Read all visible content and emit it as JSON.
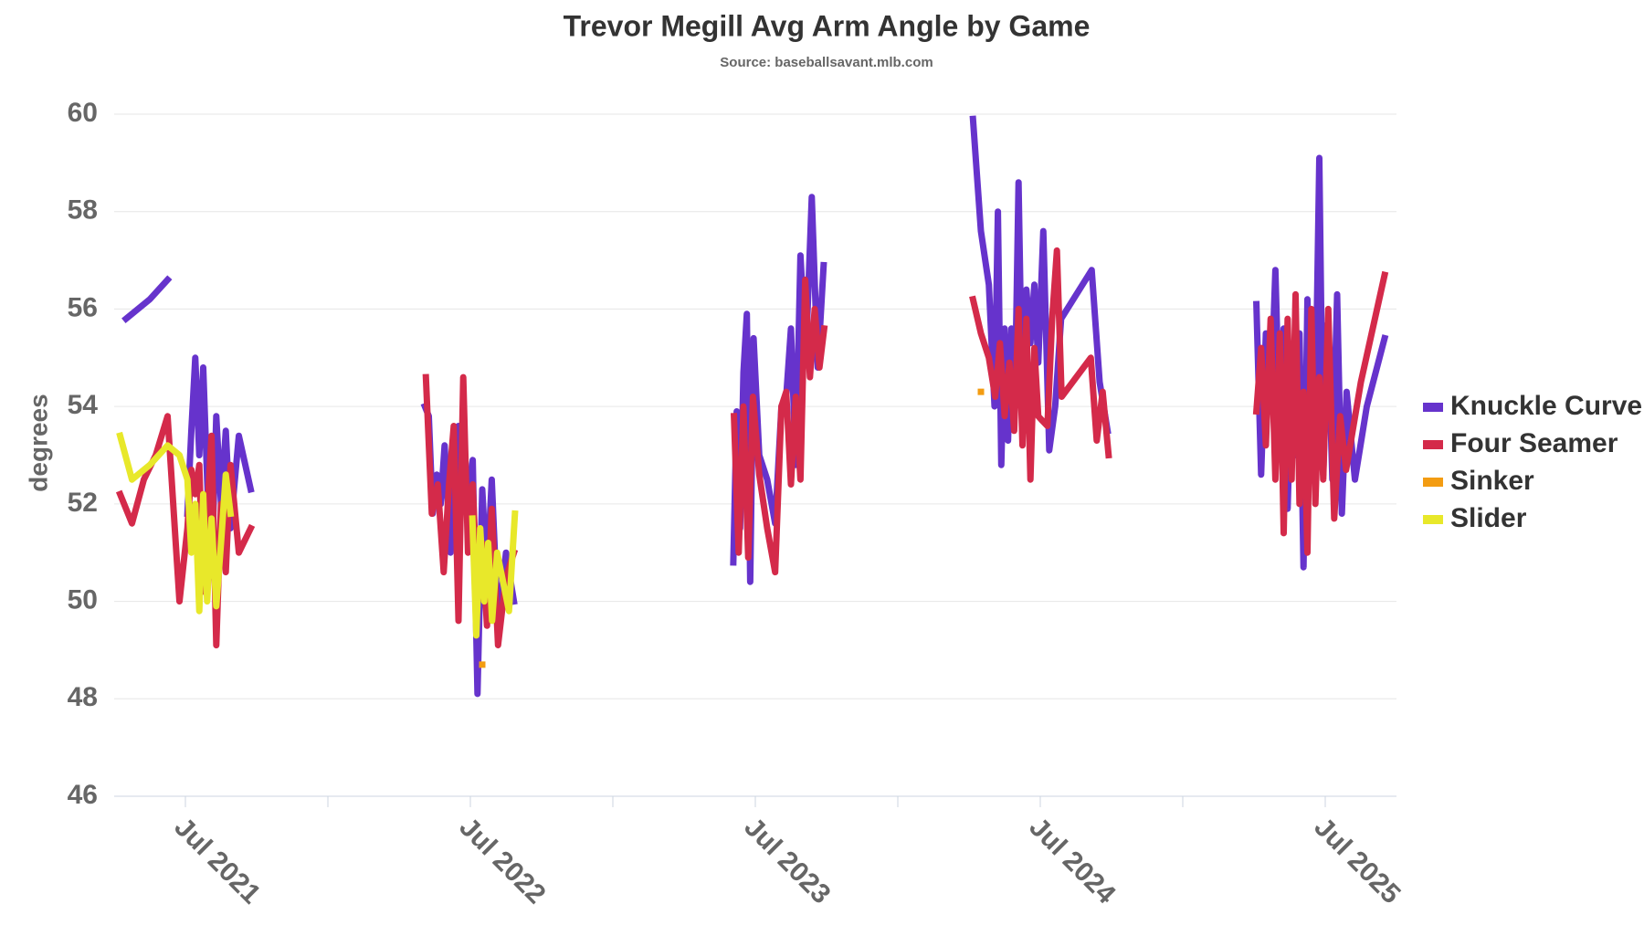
{
  "chart_data": {
    "type": "line",
    "title": "Trevor Megill Avg Arm Angle by Game",
    "subtitle": "Source: baseballsavant.mlb.com",
    "y_label": "degrees",
    "ylim": [
      46,
      60
    ],
    "yticks": [
      46,
      48,
      50,
      52,
      54,
      56,
      58,
      60
    ],
    "xlim": [
      "2021-04",
      "2025-10"
    ],
    "xticks": [
      {
        "value": "2021-07",
        "label": "Jul 2021"
      },
      {
        "value": "2022-01"
      },
      {
        "value": "2022-07",
        "label": "Jul 2022"
      },
      {
        "value": "2023-01"
      },
      {
        "value": "2023-07",
        "label": "Jul 2023"
      },
      {
        "value": "2024-01"
      },
      {
        "value": "2024-07",
        "label": "Jul 2024"
      },
      {
        "value": "2025-01"
      },
      {
        "value": "2025-07",
        "label": "Jul 2025"
      }
    ],
    "grid": true,
    "legend": "right",
    "series": [
      {
        "name": "Knuckle Curve",
        "color": "#6633cc",
        "x": [
          "2021-04",
          "2021-05",
          "2021-06",
          "2021-06",
          "2021-07",
          "2021-07",
          "2021-07",
          "2021-07",
          "2021-07",
          "2021-07",
          "2021-08",
          "2021-08",
          "2021-08",
          "2021-08",
          "2021-08",
          "2021-09",
          "2021-09",
          "2022-01",
          "2022-05",
          "2022-05",
          "2022-05",
          "2022-05",
          "2022-05",
          "2022-05",
          "2022-06",
          "2022-06",
          "2022-06",
          "2022-07",
          "2022-07",
          "2022-07",
          "2022-07",
          "2022-07",
          "2022-08",
          "2022-08",
          "2022-08",
          "2023-01",
          "2023-06",
          "2023-06",
          "2023-06",
          "2023-06",
          "2023-06",
          "2023-06",
          "2023-06",
          "2023-07",
          "2023-07",
          "2023-07",
          "2023-08",
          "2023-08",
          "2023-08",
          "2023-08",
          "2023-08",
          "2023-09",
          "2023-09",
          "2023-09",
          "2023-09",
          "2024-01",
          "2024-04",
          "2024-04",
          "2024-04",
          "2024-05",
          "2024-05",
          "2024-05",
          "2024-05",
          "2024-05",
          "2024-05",
          "2024-05",
          "2024-06",
          "2024-06",
          "2024-06",
          "2024-06",
          "2024-06",
          "2024-06",
          "2024-07",
          "2024-07",
          "2024-07",
          "2024-07",
          "2024-09",
          "2024-09",
          "2024-09",
          "2025-01",
          "2025-04",
          "2025-04",
          "2025-04",
          "2025-04",
          "2025-04",
          "2025-05",
          "2025-05",
          "2025-05",
          "2025-05",
          "2025-05",
          "2025-05",
          "2025-06",
          "2025-06",
          "2025-06",
          "2025-06",
          "2025-06",
          "2025-06",
          "2025-07",
          "2025-07",
          "2025-07",
          "2025-07",
          "2025-07",
          "2025-08",
          "2025-08",
          "2025-09"
        ],
        "values": [
          55.8,
          56.2,
          56.6,
          null,
          51.8,
          53.5,
          55.0,
          53.0,
          54.8,
          52.5,
          50.5,
          53.8,
          52.0,
          53.5,
          51.5,
          53.4,
          52.3,
          null,
          54.0,
          53.8,
          51.8,
          52.6,
          52.0,
          53.2,
          51.0,
          53.6,
          52.0,
          52.9,
          48.1,
          52.3,
          50.5,
          52.5,
          49.5,
          51.0,
          50.0,
          null,
          50.8,
          53.9,
          51.5,
          54.7,
          55.9,
          50.4,
          55.4,
          53.0,
          52.5,
          51.6,
          54.0,
          54.2,
          55.6,
          52.8,
          57.1,
          55.0,
          58.3,
          54.8,
          56.9,
          null,
          59.9,
          57.6,
          56.5,
          54.0,
          58.0,
          52.8,
          55.6,
          53.3,
          55.6,
          54.0,
          58.6,
          53.8,
          56.4,
          55.3,
          56.5,
          54.9,
          57.6,
          53.1,
          54.0,
          55.8,
          56.8,
          54.5,
          53.5,
          null,
          56.1,
          52.6,
          55.5,
          54.0,
          56.8,
          53.5,
          55.6,
          51.9,
          54.8,
          53.0,
          55.5,
          50.7,
          56.2,
          52.5,
          54.0,
          59.1,
          52.6,
          55.7,
          52.5,
          56.3,
          51.8,
          54.3,
          52.5,
          54.0,
          55.4
        ]
      },
      {
        "name": "Four Seamer",
        "color": "#d42a4a",
        "x": [
          "2021-04",
          "2021-04",
          "2021-05",
          "2021-05",
          "2021-06",
          "2021-06",
          "2021-07",
          "2021-07",
          "2021-07",
          "2021-07",
          "2021-07",
          "2021-07",
          "2021-08",
          "2021-08",
          "2021-08",
          "2021-08",
          "2021-08",
          "2021-09",
          "2021-09",
          "2022-01",
          "2022-05",
          "2022-05",
          "2022-05",
          "2022-05",
          "2022-06",
          "2022-06",
          "2022-06",
          "2022-06",
          "2022-06",
          "2022-07",
          "2022-07",
          "2022-07",
          "2022-07",
          "2022-07",
          "2022-08",
          "2022-08",
          "2022-08",
          "2023-01",
          "2023-06",
          "2023-06",
          "2023-06",
          "2023-06",
          "2023-06",
          "2023-07",
          "2023-07",
          "2023-07",
          "2023-08",
          "2023-08",
          "2023-08",
          "2023-08",
          "2023-08",
          "2023-09",
          "2023-09",
          "2023-09",
          "2023-09",
          "2023-09",
          "2024-01",
          "2024-04",
          "2024-04",
          "2024-04",
          "2024-05",
          "2024-05",
          "2024-05",
          "2024-05",
          "2024-05",
          "2024-06",
          "2024-06",
          "2024-06",
          "2024-06",
          "2024-06",
          "2024-06",
          "2024-07",
          "2024-07",
          "2024-07",
          "2024-07",
          "2024-07",
          "2024-09",
          "2024-09",
          "2024-09",
          "2024-09",
          "2025-01",
          "2025-04",
          "2025-04",
          "2025-04",
          "2025-04",
          "2025-04",
          "2025-05",
          "2025-05",
          "2025-05",
          "2025-05",
          "2025-05",
          "2025-05",
          "2025-06",
          "2025-06",
          "2025-06",
          "2025-06",
          "2025-06",
          "2025-06",
          "2025-07",
          "2025-07",
          "2025-07",
          "2025-07",
          "2025-08",
          "2025-09"
        ],
        "values": [
          52.2,
          51.6,
          52.5,
          53.0,
          53.8,
          50.0,
          51.5,
          52.7,
          52.2,
          52.8,
          50.2,
          51.8,
          53.4,
          49.1,
          52.0,
          50.6,
          52.8,
          51.0,
          51.5,
          null,
          54.6,
          51.8,
          52.4,
          50.6,
          52.4,
          53.6,
          49.6,
          54.6,
          51.0,
          52.4,
          50.0,
          51.2,
          49.5,
          51.9,
          49.1,
          50.5,
          51.0,
          null,
          53.8,
          51.0,
          54.0,
          50.9,
          54.2,
          52.6,
          51.5,
          50.6,
          54.0,
          54.3,
          52.4,
          54.2,
          52.5,
          56.6,
          54.6,
          56.0,
          54.8,
          55.6,
          null,
          56.2,
          55.5,
          55.0,
          54.2,
          55.3,
          53.8,
          54.9,
          53.5,
          56.0,
          53.2,
          55.8,
          52.5,
          55.2,
          53.8,
          53.7,
          53.6,
          55.8,
          57.2,
          54.2,
          55.0,
          53.3,
          54.3,
          53.0,
          null,
          53.9,
          55.2,
          53.2,
          55.8,
          52.5,
          55.5,
          51.4,
          55.8,
          52.5,
          56.3,
          52.0,
          54.3,
          51.0,
          56.0,
          52.0,
          54.6,
          52.5,
          56.0,
          51.7,
          53.8,
          52.7,
          54.5,
          56.7
        ]
      },
      {
        "name": "Sinker",
        "color": "#f39c12",
        "x": [
          "2022-07",
          "2023-01",
          "2024-04"
        ],
        "values": [
          48.7,
          null,
          54.3
        ]
      },
      {
        "name": "Slider",
        "color": "#e8e82a",
        "x": [
          "2021-04",
          "2021-04",
          "2021-05",
          "2021-06",
          "2021-06",
          "2021-07",
          "2021-07",
          "2021-07",
          "2021-07",
          "2021-07",
          "2021-07",
          "2021-08",
          "2021-08",
          "2021-08",
          "2021-08",
          "2021-08",
          "2022-01",
          "2022-07",
          "2022-07",
          "2022-07",
          "2022-07",
          "2022-07",
          "2022-07",
          "2022-08",
          "2022-08",
          "2022-08",
          "2022-08"
        ],
        "values": [
          53.4,
          52.5,
          52.8,
          53.2,
          53.0,
          52.5,
          51.0,
          52.0,
          49.8,
          52.2,
          50.0,
          51.7,
          49.9,
          51.2,
          52.6,
          51.8,
          null,
          51.7,
          49.3,
          51.5,
          50.0,
          51.2,
          49.6,
          51.0,
          50.4,
          49.8,
          51.8
        ]
      }
    ]
  }
}
